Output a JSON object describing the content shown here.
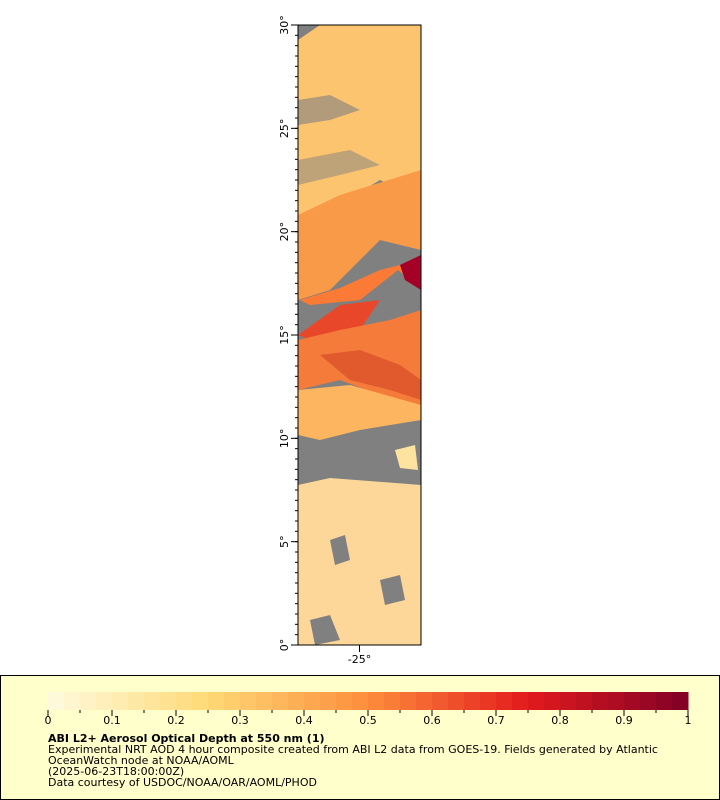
{
  "map": {
    "xlim": [
      -28,
      -22
    ],
    "ylim": [
      0,
      30
    ],
    "xticks": [
      {
        "value": -25,
        "label": "-25°"
      }
    ],
    "yticks": [
      {
        "value": 0,
        "label": "0°"
      },
      {
        "value": 5,
        "label": "5°"
      },
      {
        "value": 10,
        "label": "10°"
      },
      {
        "value": 15,
        "label": "15°"
      },
      {
        "value": 20,
        "label": "20°"
      },
      {
        "value": 25,
        "label": "25°"
      },
      {
        "value": 30,
        "label": "30°"
      }
    ]
  },
  "legend": {
    "title": "ABI L2+ Aerosol Optical Depth at 550 nm (1)",
    "lines": [
      "Experimental NRT AOD 4 hour composite created from ABI L2 data from GOES-19. Fields generated by Atlantic",
      "OceanWatch node at NOAA/AOML",
      "(2025-06-23T18:00:00Z)",
      "Data courtesy of USDOC/NOAA/OAR/AOML/PHOD"
    ],
    "colorbar": {
      "range": [
        0,
        1
      ],
      "ticks": [
        0,
        0.1,
        0.2,
        0.3,
        0.4,
        0.5,
        0.6,
        0.7,
        0.8,
        0.9,
        1
      ]
    }
  }
}
